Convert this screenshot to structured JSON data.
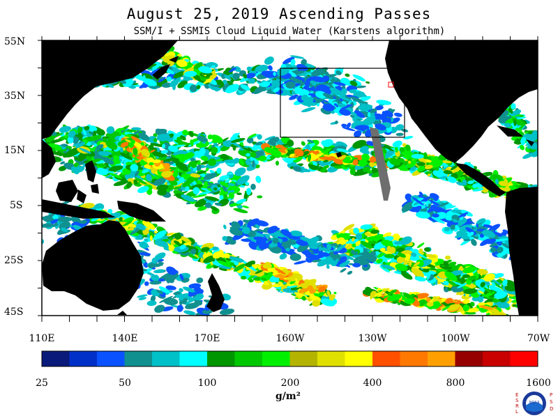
{
  "header": {
    "title": "August 25, 2019  Ascending Passes",
    "subtitle": "SSM/I + SSMIS Cloud Liquid Water (Karstens algorithm)"
  },
  "map": {
    "lat_labels": [
      "55N",
      "35N",
      "15N",
      "5S",
      "25S",
      "45S"
    ],
    "lon_labels": [
      "110E",
      "140E",
      "170E",
      "160W",
      "130W",
      "100W",
      "70W"
    ],
    "colors": {
      "land": "#000000",
      "no_cloud": "#ffffff",
      "swath_gap": "#6e6e6e",
      "box": "#000000",
      "marker": "#ff0000"
    }
  },
  "colorbar": {
    "colors": [
      "#0a1a7a",
      "#0030c8",
      "#0a52ff",
      "#119090",
      "#00c0c8",
      "#00ffff",
      "#009600",
      "#00c800",
      "#00f000",
      "#b4b400",
      "#e0e000",
      "#ffff00",
      "#ff5000",
      "#ff7800",
      "#ffa000",
      "#960000",
      "#c80000",
      "#ff0000"
    ],
    "labels": [
      "25",
      "50",
      "100",
      "200",
      "400",
      "800",
      "1600"
    ],
    "units": "g/m²"
  },
  "logo": {
    "center_text": "NOAA",
    "left_letters": [
      "E",
      "S",
      "R",
      "L"
    ],
    "right_letters": [
      "P",
      "S",
      "D"
    ]
  }
}
